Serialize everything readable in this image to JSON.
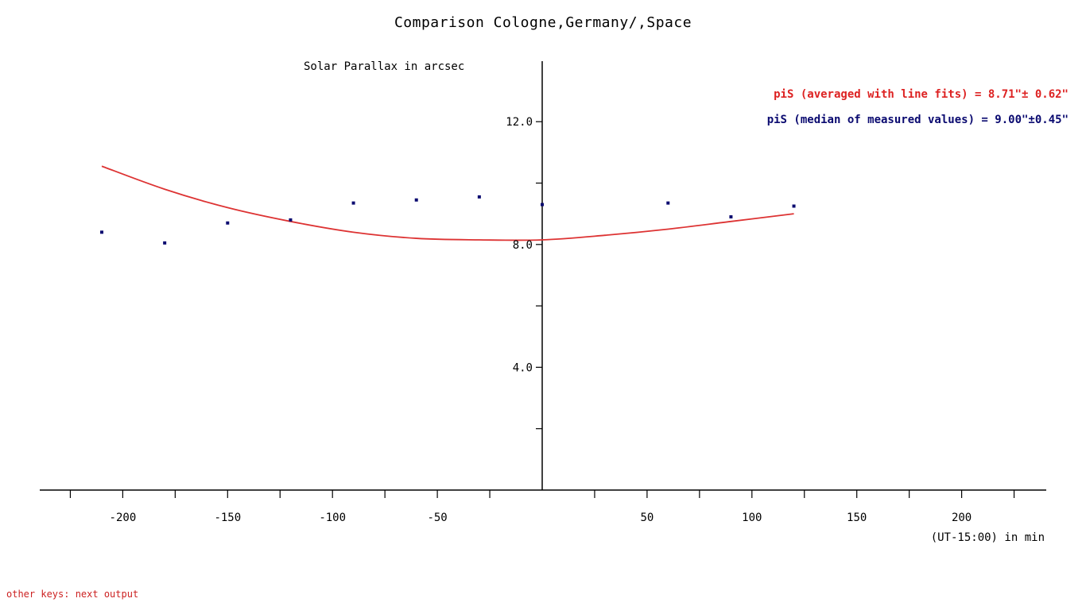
{
  "title": "Comparison Cologne,Germany/,Space",
  "footer_hint": "other keys: next output",
  "colors": {
    "fit": "#dd3333",
    "points": "#0a0a70",
    "axis": "#000000"
  },
  "chart_data": {
    "type": "scatter",
    "title": "Comparison Cologne,Germany/,Space",
    "xlabel": "(UT-15:00) in min",
    "ylabel": "Solar Parallax in arcsec",
    "xlim": [
      -240,
      240
    ],
    "ylim": [
      0,
      14
    ],
    "x_ticks": [
      -200,
      -150,
      -100,
      -50,
      50,
      100,
      150,
      200
    ],
    "y_ticks": [
      4.0,
      8.0,
      12.0
    ],
    "y_tick_labels": [
      "4.0",
      "8.0",
      "12.0"
    ],
    "grid": false,
    "legend_position": "top-right",
    "legend": [
      "piS (averaged with line fits) = 8.71\"± 0.62\"",
      "piS (median of measured values) = 9.00\"±0.45\""
    ],
    "series": [
      {
        "type": "scatter",
        "x": [
          -210,
          -180,
          -150,
          -120,
          -90,
          -60,
          -30,
          0,
          60,
          90,
          120
        ],
        "y": [
          8.4,
          8.05,
          8.7,
          8.8,
          9.35,
          9.45,
          9.55,
          9.3,
          9.35,
          8.9,
          9.25
        ]
      },
      {
        "type": "line",
        "x": [
          -210,
          -180,
          -150,
          -120,
          -90,
          -60,
          -30,
          0,
          30,
          60,
          90,
          120
        ],
        "y": [
          10.55,
          9.8,
          9.2,
          8.75,
          8.4,
          8.2,
          8.15,
          8.15,
          8.3,
          8.5,
          8.75,
          9.0
        ]
      }
    ]
  }
}
